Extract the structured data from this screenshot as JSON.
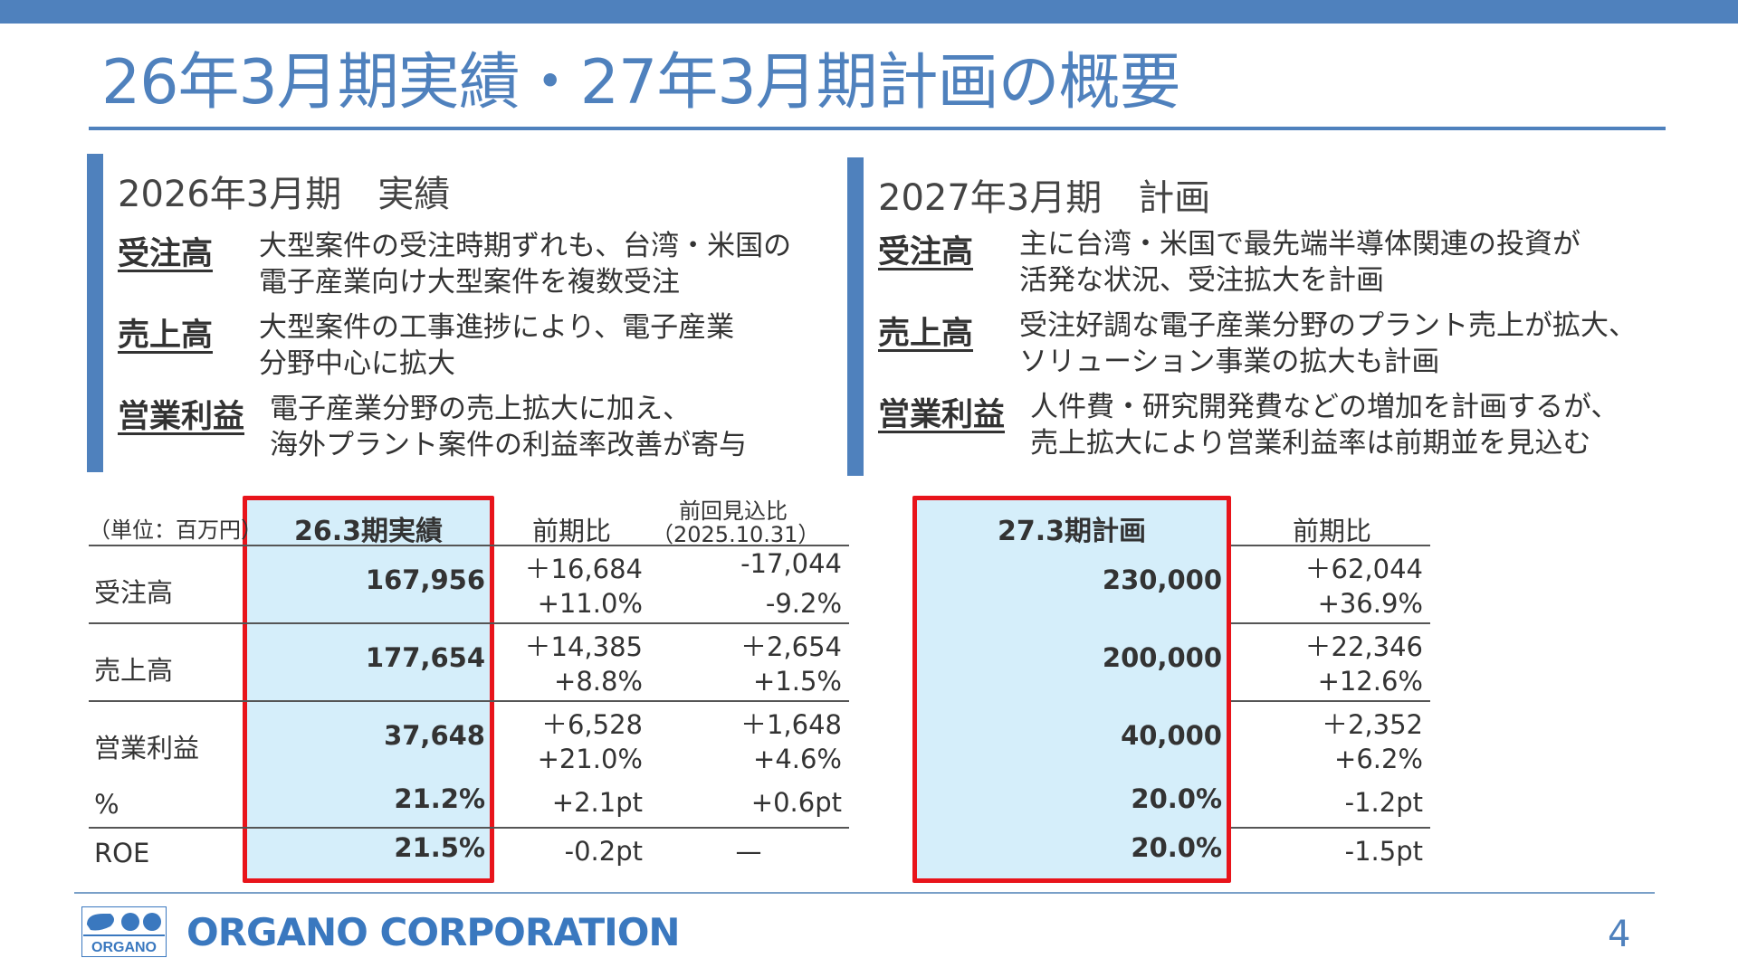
{
  "title": "26年3月期実績・27年3月期計画の概要",
  "left_panel": {
    "heading": "2026年3月期　実績",
    "items": [
      {
        "label": "受注高",
        "lines": [
          "大型案件の受注時期ずれも、台湾・米国の",
          "電子産業向け大型案件を複数受注"
        ]
      },
      {
        "label": "売上高",
        "lines": [
          "大型案件の工事進捗により、電子産業",
          "分野中心に拡大"
        ]
      },
      {
        "label": "営業利益",
        "lines": [
          "電子産業分野の売上拡大に加え、",
          "海外プラント案件の利益率改善が寄与"
        ]
      }
    ]
  },
  "right_panel": {
    "heading": "2027年3月期　計画",
    "items": [
      {
        "label": "受注高",
        "lines": [
          "主に台湾・米国で最先端半導体関連の投資が",
          "活発な状況、受注拡大を計画"
        ]
      },
      {
        "label": "売上高",
        "lines": [
          "受注好調な電子産業分野のプラント売上が拡大、",
          "ソリューション事業の拡大も計画"
        ]
      },
      {
        "label": "営業利益",
        "lines": [
          "人件費・研究開発費などの増加を計画するが、",
          "売上拡大により営業利益率は前期並を見込む"
        ]
      }
    ]
  },
  "left_table": {
    "unit_label": "（単位：百万円）",
    "col_actual": "26.3期実績",
    "col_yoy": "前期比",
    "col_prev_line1": "前回見込比",
    "col_prev_line2": "（2025.10.31）",
    "rows": {
      "orders": {
        "label": "受注高",
        "value": "167,956",
        "yoy_abs": "＋16,684",
        "yoy_pct": "+11.0%",
        "prev_abs": "-17,044",
        "prev_pct": "-9.2%"
      },
      "sales": {
        "label": "売上高",
        "value": "177,654",
        "yoy_abs": "＋14,385",
        "yoy_pct": "+8.8%",
        "prev_abs": "＋2,654",
        "prev_pct": "+1.5%"
      },
      "op": {
        "label": "営業利益",
        "value": "37,648",
        "yoy_abs": "＋6,528",
        "yoy_pct": "+21.0%",
        "prev_abs": "＋1,648",
        "prev_pct": "+4.6%"
      },
      "margin": {
        "label": "%",
        "value": "21.2%",
        "yoy": "+2.1pt",
        "prev": "+0.6pt"
      },
      "roe": {
        "label": "ROE",
        "value": "21.5%",
        "yoy": "-0.2pt",
        "prev": "—"
      }
    }
  },
  "right_table": {
    "col_plan": "27.3期計画",
    "col_yoy": "前期比",
    "rows": {
      "orders": {
        "value": "230,000",
        "yoy_abs": "＋62,044",
        "yoy_pct": "+36.9%"
      },
      "sales": {
        "value": "200,000",
        "yoy_abs": "＋22,346",
        "yoy_pct": "+12.6%"
      },
      "op": {
        "value": "40,000",
        "yoy_abs": "＋2,352",
        "yoy_pct": "+6.2%"
      },
      "margin": {
        "value": "20.0%",
        "yoy": "-1.2pt"
      },
      "roe": {
        "value": "20.0%",
        "yoy": "-1.5pt"
      }
    }
  },
  "footer": {
    "logo_text": "ORGANO",
    "company": "ORGANO CORPORATION",
    "page": "4"
  },
  "colors": {
    "accent_blue": "#4f81bd",
    "highlight_fill": "#d5eefa",
    "highlight_border": "#e8141b",
    "negative_red": "#d0241e"
  }
}
